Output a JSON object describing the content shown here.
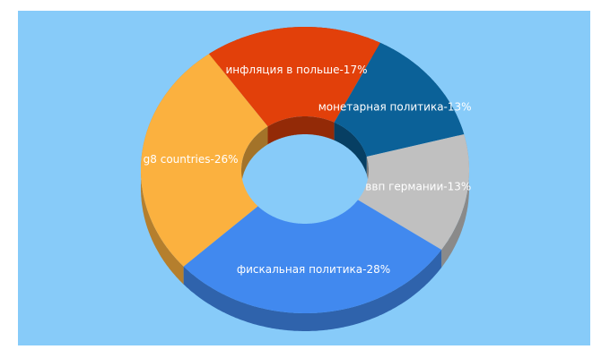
{
  "chart_data": {
    "type": "donut",
    "value_labels": [
      "инфляция в польше-17%",
      "монетарная политика-13%",
      "ввп германии-13%",
      "фискальная политика-28%",
      "g8 countries-26%"
    ],
    "values": [
      17,
      13,
      13,
      28,
      26
    ],
    "colors": [
      "#e2400a",
      "#0b6198",
      "#c0c0c0",
      "#4189ef",
      "#fbb13f"
    ]
  }
}
